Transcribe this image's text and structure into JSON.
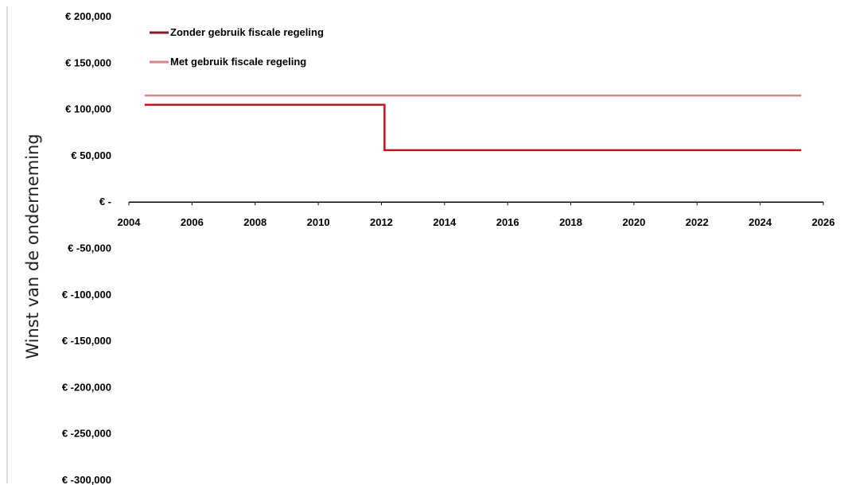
{
  "chart_data": {
    "type": "line",
    "title": "",
    "xlabel": "",
    "ylabel": "Winst van de onderneming",
    "xlim": [
      2004,
      2026
    ],
    "ylim": [
      -300000,
      200000
    ],
    "x_ticks": [
      "2004",
      "2006",
      "2008",
      "2010",
      "2012",
      "2014",
      "2016",
      "2018",
      "2020",
      "2022",
      "2024",
      "2026"
    ],
    "y_ticks": [
      "€ 200,000",
      "€ 150,000",
      "€ 100,000",
      "€ 50,000",
      "€ -",
      "€ -50,000",
      "€ -100,000",
      "€ -150,000",
      "€ -200,000",
      "€ -250,000",
      "€ -300,000"
    ],
    "grid": false,
    "legend_position": "top-left",
    "series": [
      {
        "name": "Zonder gebruik fiscale regeling",
        "color": "#c0141e",
        "legend_color": "#7a1f22",
        "points": [
          [
            2004.5,
            105000
          ],
          [
            2012.1,
            105000
          ],
          [
            2012.1,
            56000
          ],
          [
            2025.3,
            56000
          ]
        ]
      },
      {
        "name": "Met gebruik fiscale regeling",
        "color": "#d4868a",
        "legend_color": "#d4868a",
        "points": [
          [
            2004.5,
            115000
          ],
          [
            2025.3,
            115000
          ]
        ]
      }
    ]
  }
}
